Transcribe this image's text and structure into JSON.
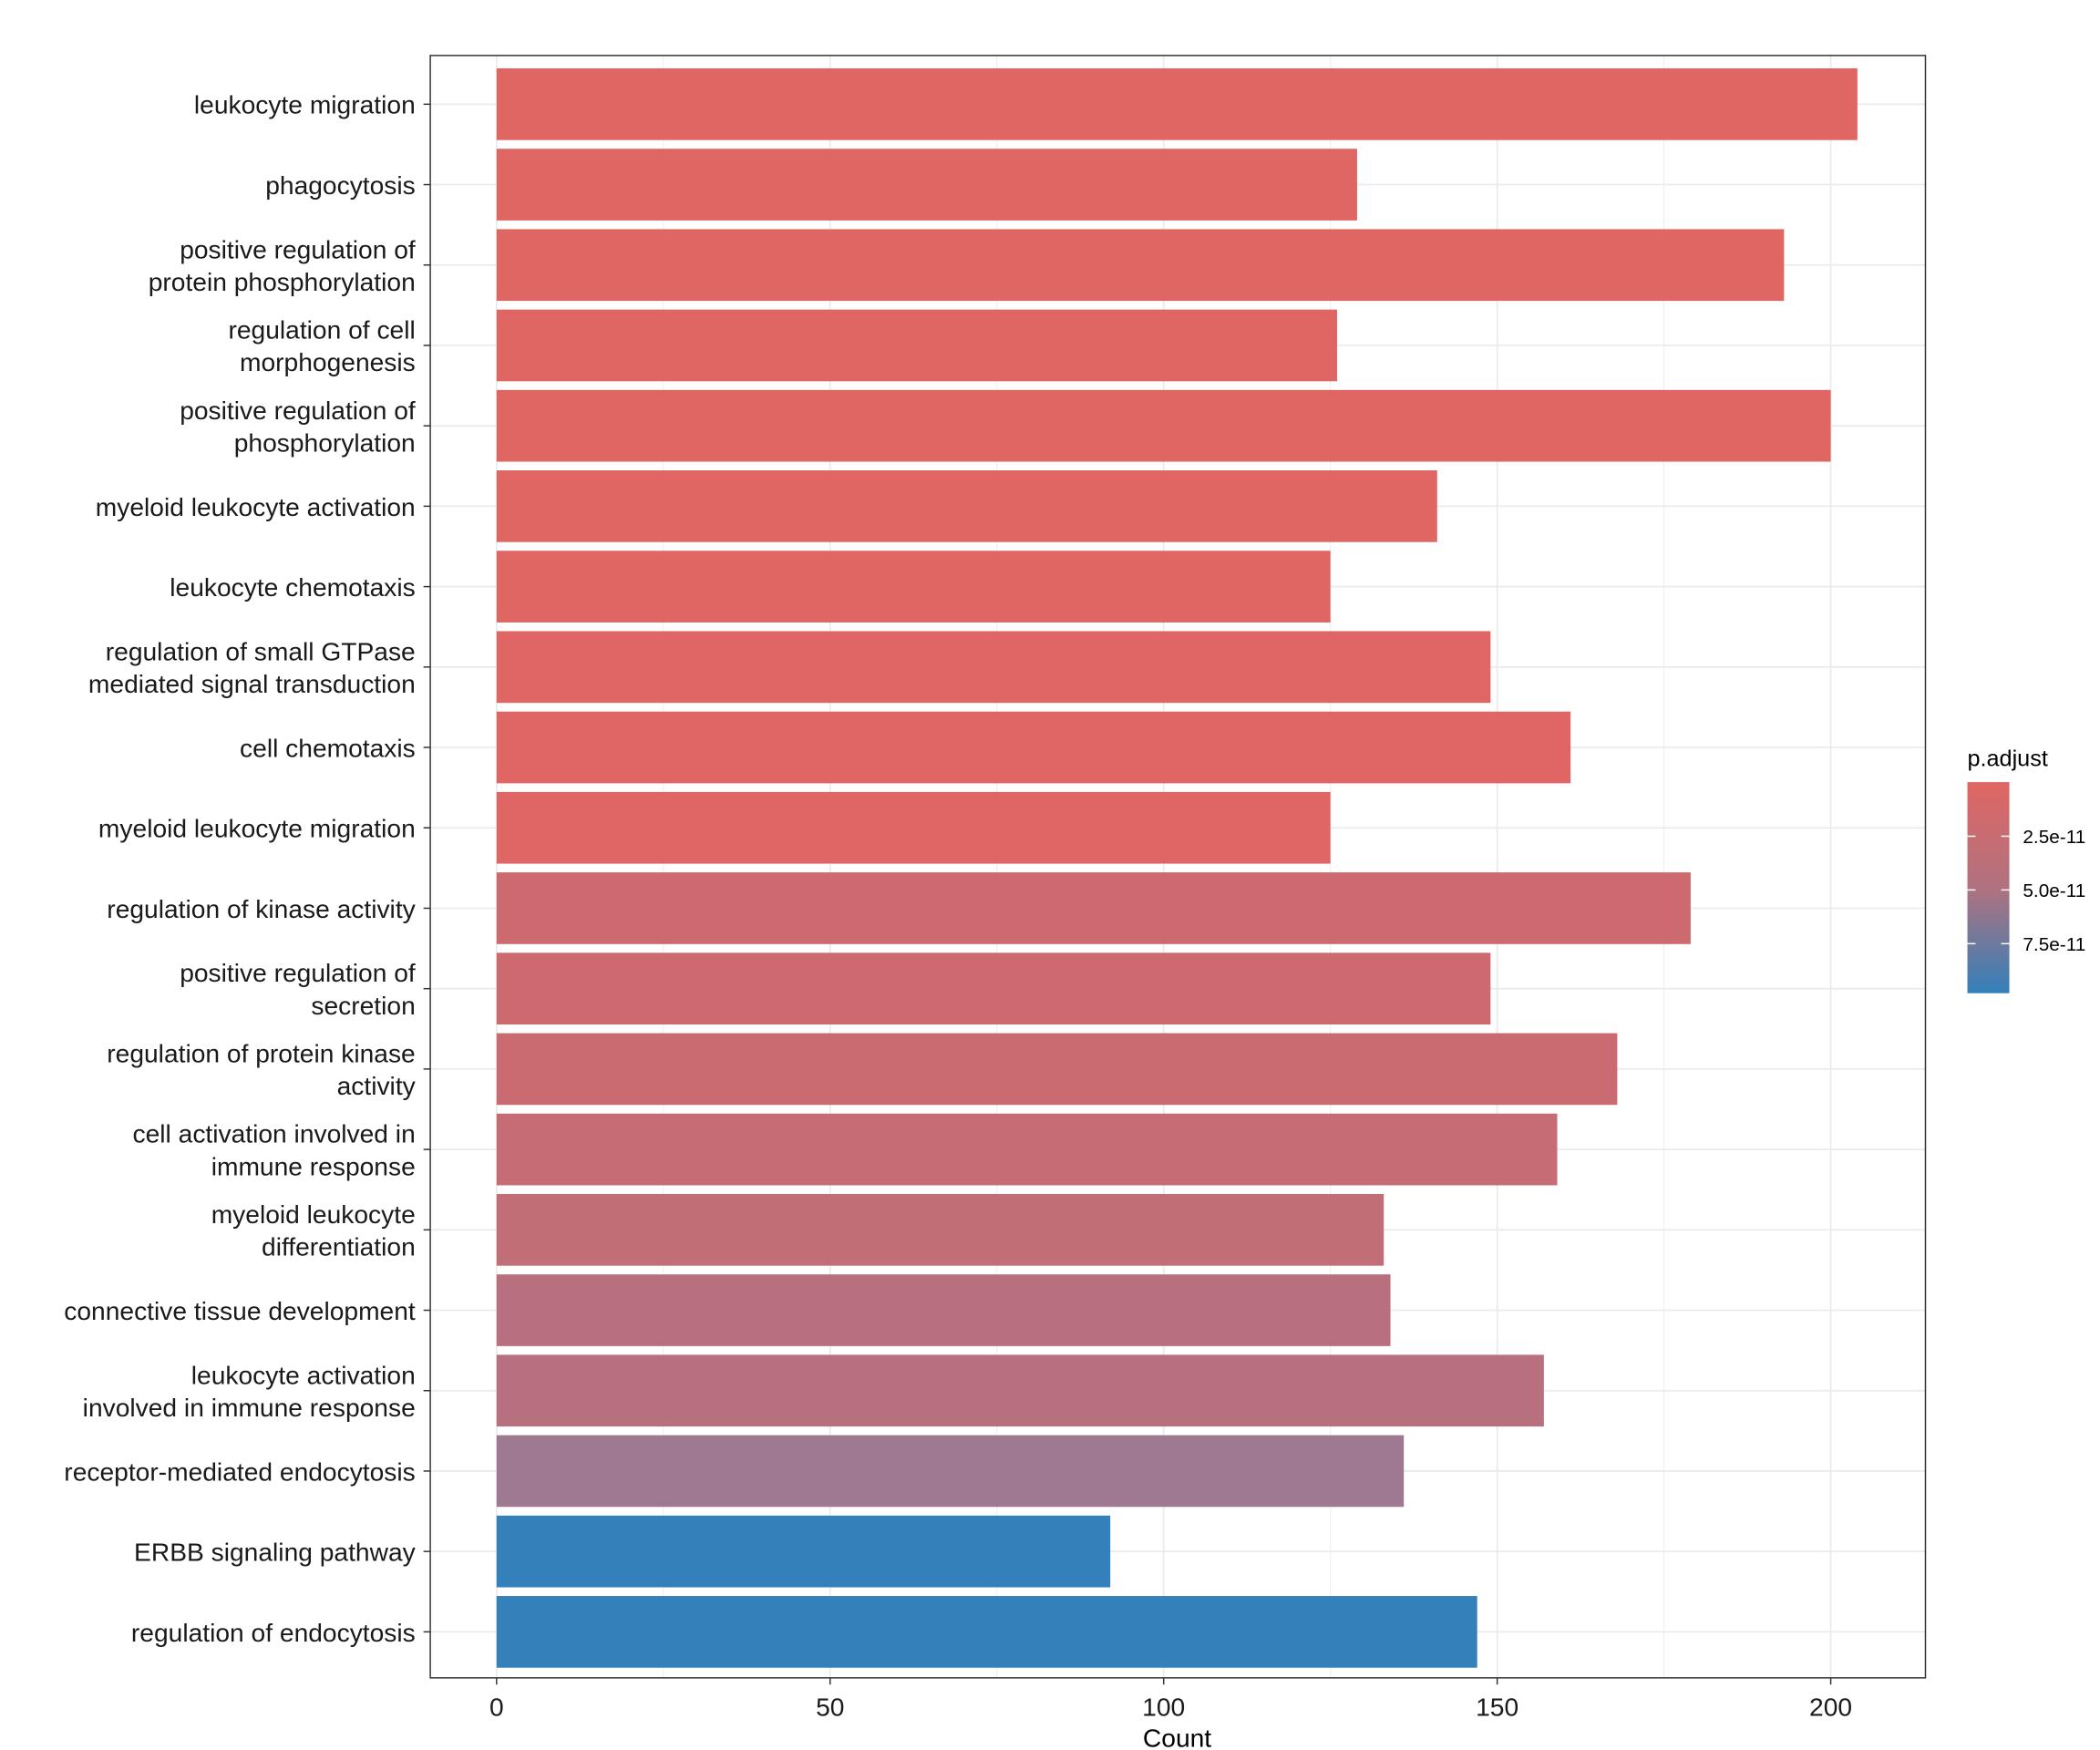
{
  "chart_data": {
    "type": "bar",
    "orientation": "horizontal",
    "xlabel": "Count",
    "ylabel": "",
    "xlim": [
      -10,
      214
    ],
    "xticks": [
      0,
      50,
      100,
      150,
      200
    ],
    "grid": true,
    "categories": [
      [
        "leukocyte migration"
      ],
      [
        "phagocytosis"
      ],
      [
        "positive regulation of",
        "protein phosphorylation"
      ],
      [
        "regulation of cell",
        "morphogenesis"
      ],
      [
        "positive regulation of",
        "phosphorylation"
      ],
      [
        "myeloid leukocyte activation"
      ],
      [
        "leukocyte chemotaxis"
      ],
      [
        "regulation of small GTPase",
        "mediated signal transduction"
      ],
      [
        "cell chemotaxis"
      ],
      [
        "myeloid leukocyte migration"
      ],
      [
        "regulation of kinase activity"
      ],
      [
        "positive regulation of",
        "secretion"
      ],
      [
        "regulation of protein kinase",
        "activity"
      ],
      [
        "cell activation involved in",
        "immune response"
      ],
      [
        "myeloid leukocyte",
        "differentiation"
      ],
      [
        "connective tissue development"
      ],
      [
        "leukocyte activation",
        "involved in immune response"
      ],
      [
        "receptor-mediated endocytosis"
      ],
      [
        "ERBB signaling pathway"
      ],
      [
        "regulation of endocytosis"
      ]
    ],
    "values": [
      204,
      129,
      193,
      126,
      200,
      141,
      125,
      149,
      161,
      125,
      179,
      149,
      168,
      159,
      133,
      134,
      157,
      136,
      92,
      147
    ],
    "colors": [
      "#E06663",
      "#E06663",
      "#E06663",
      "#E06663",
      "#E06663",
      "#E06664",
      "#E06664",
      "#DF6665",
      "#DF6665",
      "#DF6665",
      "#CD6A70",
      "#CD6A70",
      "#CA6B72",
      "#C66C74",
      "#C26E77",
      "#B8707E",
      "#B8707E",
      "#9E7991",
      "#3380BA",
      "#3380BA"
    ],
    "legend": {
      "title": "p.adjust",
      "position": "right",
      "labels": [
        "2.5e-11",
        "5.0e-11",
        "7.5e-11"
      ],
      "low_color": "#E06663",
      "high_color": "#3380BA"
    }
  }
}
